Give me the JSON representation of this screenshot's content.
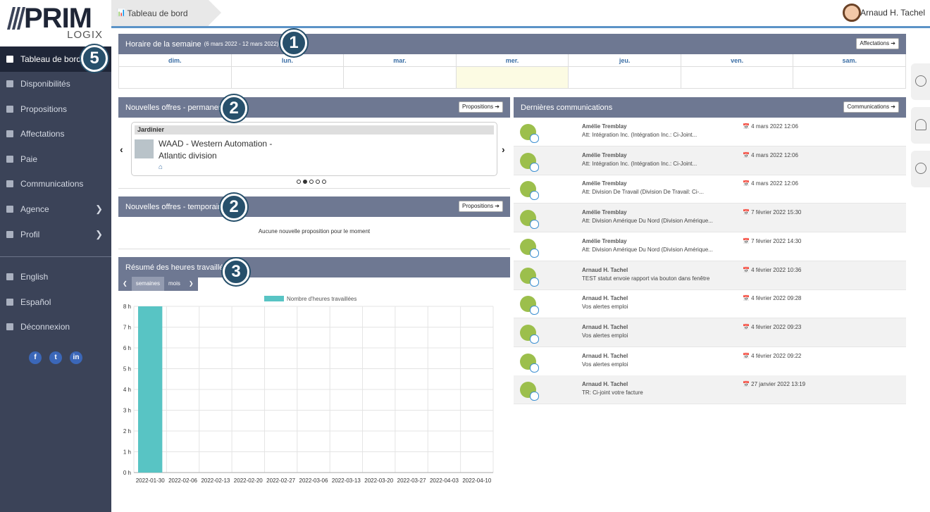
{
  "app": {
    "logo_main": "PRIM",
    "logo_sub": "LOGIX"
  },
  "topbar": {
    "breadcrumb": "Tableau de bord",
    "user_name": "Arnaud H. Tachel"
  },
  "sidebar": {
    "items": [
      {
        "label": "Tableau de bord",
        "icon": "bar-chart-icon"
      },
      {
        "label": "Disponibilités",
        "icon": "calendar-icon"
      },
      {
        "label": "Propositions",
        "icon": "id-card-icon"
      },
      {
        "label": "Affectations",
        "icon": "briefcase-icon"
      },
      {
        "label": "Paie",
        "icon": "dollar-icon"
      },
      {
        "label": "Communications",
        "icon": "chat-icon"
      },
      {
        "label": "Agence",
        "icon": "building-icon"
      },
      {
        "label": "Profil",
        "icon": "user-icon"
      },
      {
        "label": "English",
        "icon": "globe-icon"
      },
      {
        "label": "Español",
        "icon": "globe-icon"
      },
      {
        "label": "Déconnexion",
        "icon": "logout-icon"
      }
    ],
    "socials": [
      "f",
      "t",
      "in"
    ]
  },
  "callouts": [
    "1",
    "2",
    "2",
    "3",
    "5"
  ],
  "schedule": {
    "title": "Horaire de la semaine",
    "range": "(6 mars 2022 - 12 mars 2022)",
    "button": "Affectations ➔",
    "days": [
      "dim.",
      "lun.",
      "mar.",
      "mer.",
      "jeu.",
      "ven.",
      "sam."
    ]
  },
  "offers_perm": {
    "title": "Nouvelles offres - permanent",
    "button": "Propositions ➔",
    "tag": "Jardinier",
    "company": "WAAD - Western Automation - Atlantic division"
  },
  "offers_temp": {
    "title": "Nouvelles offres - temporaire",
    "button": "Propositions ➔",
    "empty": "Aucune nouvelle proposition pour le moment"
  },
  "hours": {
    "title": "Résumé des heures travaillées",
    "toggle": [
      "semaines",
      "mois"
    ]
  },
  "chart_data": {
    "type": "bar",
    "categories": [
      "2022-01-30",
      "2022-02-06",
      "2022-02-13",
      "2022-02-20",
      "2022-02-27",
      "2022-03-06",
      "2022-03-13",
      "2022-03-20",
      "2022-03-27",
      "2022-04-03",
      "2022-04-10"
    ],
    "series": [
      {
        "name": "Nombre d'heures travaillées",
        "values": [
          8,
          0,
          0,
          0,
          0,
          0,
          0,
          0,
          0,
          0,
          0
        ]
      }
    ],
    "y_ticks": [
      "0 h",
      "1 h",
      "2 h",
      "3 h",
      "4 h",
      "5 h",
      "6 h",
      "7 h",
      "8 h"
    ],
    "ylim": [
      0,
      8
    ],
    "color": "#58c4c4"
  },
  "communications": {
    "title": "Dernières communications",
    "button": "Communications ➔",
    "items": [
      {
        "from": "Amélie Tremblay",
        "subject": "Att: Intégration Inc. (Intégration Inc.: Ci-Joint...",
        "date": "📅 4 mars 2022 12:06"
      },
      {
        "from": "Amélie Tremblay",
        "subject": "Att: Intégration Inc. (Intégration Inc.: Ci-Joint...",
        "date": "📅 4 mars 2022 12:06"
      },
      {
        "from": "Amélie Tremblay",
        "subject": "Att: Division De Travail (Division De Travail: Ci-...",
        "date": "📅 4 mars 2022 12:06"
      },
      {
        "from": "Amélie Tremblay",
        "subject": "Att: Division Amérique Du Nord (Division Amérique...",
        "date": "📅 7 février 2022 15:30"
      },
      {
        "from": "Amélie Tremblay",
        "subject": "Att: Division Amérique Du Nord (Division Amérique...",
        "date": "📅 7 février 2022 14:30"
      },
      {
        "from": "Arnaud H. Tachel",
        "subject": "TEST statut envoie rapport via bouton dans fenêtre",
        "date": "📅 4 février 2022 10:36"
      },
      {
        "from": "Arnaud H. Tachel",
        "subject": "Vos alertes emploi",
        "date": "📅 4 février 2022 09:28"
      },
      {
        "from": "Arnaud H. Tachel",
        "subject": "Vos alertes emploi",
        "date": "📅 4 février 2022 09:23"
      },
      {
        "from": "Arnaud H. Tachel",
        "subject": "Vos alertes emploi",
        "date": "📅 4 février 2022 09:22"
      },
      {
        "from": "Arnaud H. Tachel",
        "subject": "TR: Ci-joint votre facture",
        "date": "📅 27 janvier 2022 13:19"
      }
    ]
  }
}
